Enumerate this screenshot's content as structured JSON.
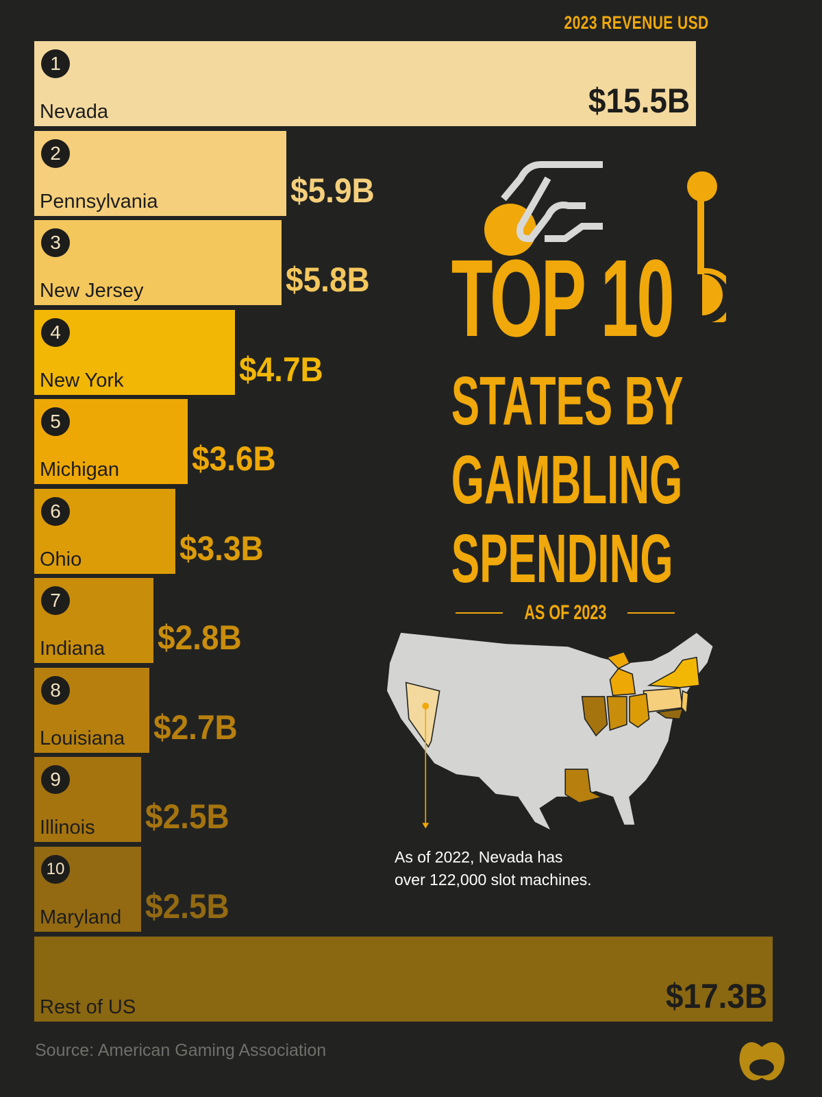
{
  "header": {
    "label": "2023 REVENUE USD"
  },
  "title": {
    "line1": "TOP 10",
    "line2": "STATES BY",
    "line3": "GAMBLING",
    "line4": "SPENDING",
    "subtitle": "AS OF 2023"
  },
  "note": {
    "line1": "As of 2022, Nevada has",
    "line2": "over 122,000 slot machines."
  },
  "source": "Source: American Gaming Association",
  "chart_data": {
    "type": "bar",
    "orientation": "horizontal",
    "title": "Top 10 States by Gambling Spending, as of 2023",
    "xlabel": "2023 Revenue USD",
    "unit": "billion USD",
    "categories": [
      "Nevada",
      "Pennsylvania",
      "New Jersey",
      "New York",
      "Michigan",
      "Ohio",
      "Indiana",
      "Louisiana",
      "Illinois",
      "Maryland",
      "Rest of US"
    ],
    "ranks": [
      "1",
      "2",
      "3",
      "4",
      "5",
      "6",
      "7",
      "8",
      "9",
      "10",
      ""
    ],
    "values": [
      15.5,
      5.9,
      5.8,
      4.7,
      3.6,
      3.3,
      2.8,
      2.7,
      2.5,
      2.5,
      17.3
    ],
    "labels": [
      "$15.5B",
      "$5.9B",
      "$5.8B",
      "$4.7B",
      "$3.6B",
      "$3.3B",
      "$2.8B",
      "$2.7B",
      "$2.5B",
      "$2.5B",
      "$17.3B"
    ],
    "colors": [
      "#f3d99e",
      "#f5cf7c",
      "#f4c75d",
      "#f2b705",
      "#eea805",
      "#dc9c08",
      "#c98d0c",
      "#b7800e",
      "#a5740f",
      "#936a12",
      "#8a6711"
    ]
  }
}
